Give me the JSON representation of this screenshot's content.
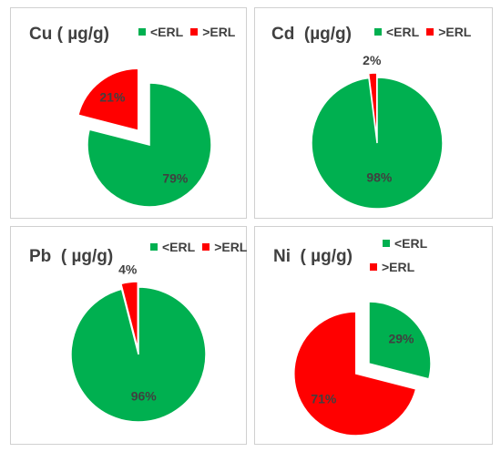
{
  "colors": {
    "below": "#00B050",
    "above": "#FF0000"
  },
  "chart_data": [
    {
      "type": "pie",
      "title": "Cu ( µg/g)",
      "categories": [
        "<ERL",
        ">ERL"
      ],
      "values": [
        79,
        21
      ],
      "labels": [
        "79%",
        "21%"
      ],
      "exploded": ">ERL",
      "legend": "top-right"
    },
    {
      "type": "pie",
      "title": "Cd  (µg/g)",
      "categories": [
        "<ERL",
        ">ERL"
      ],
      "values": [
        98,
        2
      ],
      "labels": [
        "98%",
        "2%"
      ],
      "exploded": ">ERL",
      "legend": "top-right"
    },
    {
      "type": "pie",
      "title": "Pb  ( µg/g)",
      "categories": [
        "<ERL",
        ">ERL"
      ],
      "values": [
        96,
        4
      ],
      "labels": [
        "96%",
        "4%"
      ],
      "exploded": ">ERL",
      "legend": "top-right"
    },
    {
      "type": "pie",
      "title": "Ni  ( µg/g)",
      "categories": [
        "<ERL",
        ">ERL"
      ],
      "values": [
        29,
        71
      ],
      "labels": [
        "29%",
        "71%"
      ],
      "exploded": ">ERL",
      "legend": "top-right"
    }
  ]
}
